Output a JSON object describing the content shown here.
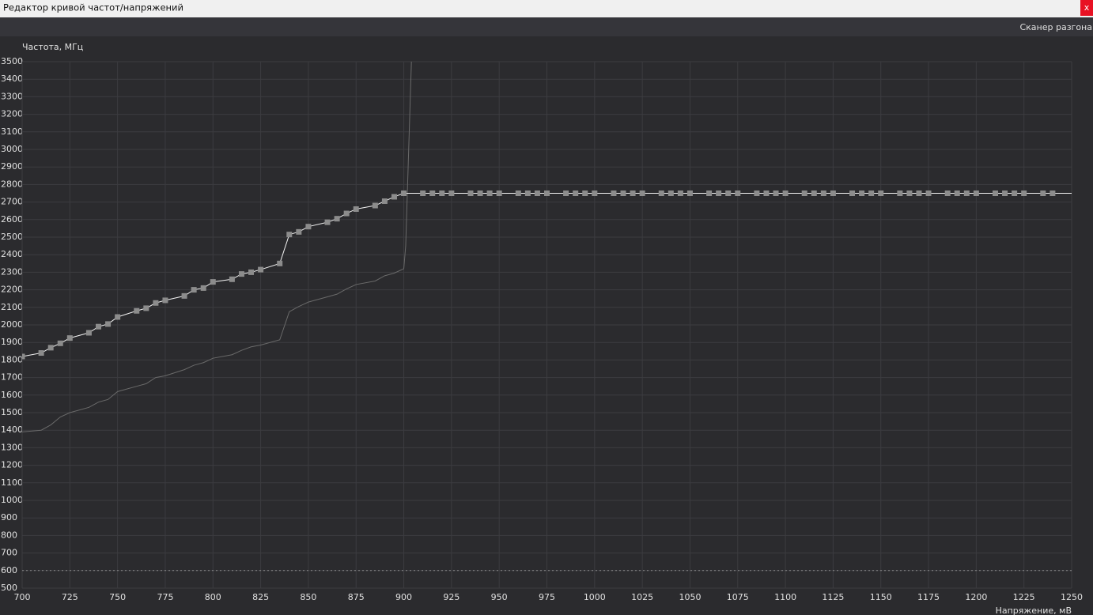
{
  "window": {
    "title": "Редактор кривой частот/напряжений",
    "close": "x",
    "toolbar_button": "Сканер разгона"
  },
  "chart_data": {
    "type": "line",
    "y_axis_label": "Частота, МГц",
    "x_axis_label": "Напряжение, мВ",
    "xlim": [
      700,
      1250
    ],
    "ylim": [
      500,
      3500
    ],
    "xticks": [
      700,
      725,
      750,
      775,
      800,
      825,
      850,
      875,
      900,
      925,
      950,
      975,
      1000,
      1025,
      1050,
      1075,
      1100,
      1125,
      1150,
      1175,
      1200,
      1225,
      1250
    ],
    "yticks": [
      500,
      600,
      700,
      800,
      900,
      1000,
      1100,
      1200,
      1300,
      1400,
      1500,
      1600,
      1700,
      1800,
      1900,
      2000,
      2100,
      2200,
      2300,
      2400,
      2500,
      2600,
      2700,
      2800,
      2900,
      3000,
      3100,
      3200,
      3300,
      3400,
      3500
    ],
    "grid": true,
    "reference_line": 600,
    "series": [
      {
        "color": "#6a6a6a",
        "markers": false,
        "x": [
          700,
          710,
          715,
          720,
          725,
          735,
          740,
          745,
          750,
          760,
          765,
          770,
          775,
          785,
          790,
          795,
          800,
          810,
          815,
          820,
          825,
          835,
          840,
          845,
          850,
          860,
          865,
          870,
          875,
          885,
          890,
          895,
          900,
          901,
          902,
          903,
          904
        ],
        "values": [
          1390,
          1400,
          1430,
          1475,
          1500,
          1530,
          1560,
          1575,
          1620,
          1650,
          1665,
          1700,
          1710,
          1745,
          1770,
          1785,
          1810,
          1830,
          1855,
          1875,
          1885,
          1915,
          2075,
          2105,
          2130,
          2160,
          2175,
          2205,
          2230,
          2250,
          2280,
          2295,
          2320,
          2450,
          2800,
          3150,
          3500
        ]
      },
      {
        "color": "#f2f2f2",
        "markers": true,
        "marker_color": "#8c8c8c",
        "x": [
          700,
          710,
          715,
          720,
          725,
          735,
          740,
          745,
          750,
          760,
          765,
          770,
          775,
          785,
          790,
          795,
          800,
          810,
          815,
          820,
          825,
          835,
          840,
          845,
          850,
          860,
          865,
          870,
          875,
          885,
          890,
          895,
          900,
          910,
          915,
          920,
          925,
          935,
          940,
          945,
          950,
          960,
          965,
          970,
          975,
          985,
          990,
          995,
          1000,
          1010,
          1015,
          1020,
          1025,
          1035,
          1040,
          1045,
          1050,
          1060,
          1065,
          1070,
          1075,
          1085,
          1090,
          1095,
          1100,
          1110,
          1115,
          1120,
          1125,
          1135,
          1140,
          1145,
          1150,
          1160,
          1165,
          1170,
          1175,
          1185,
          1190,
          1195,
          1200,
          1210,
          1215,
          1220,
          1225,
          1235,
          1240
        ],
        "values": [
          1820,
          1840,
          1870,
          1895,
          1925,
          1955,
          1990,
          2005,
          2045,
          2080,
          2095,
          2125,
          2140,
          2165,
          2200,
          2210,
          2245,
          2260,
          2290,
          2300,
          2315,
          2350,
          2515,
          2530,
          2560,
          2585,
          2605,
          2635,
          2660,
          2680,
          2705,
          2730,
          2750,
          2750,
          2750,
          2750,
          2750,
          2750,
          2750,
          2750,
          2750,
          2750,
          2750,
          2750,
          2750,
          2750,
          2750,
          2750,
          2750,
          2750,
          2750,
          2750,
          2750,
          2750,
          2750,
          2750,
          2750,
          2750,
          2750,
          2750,
          2750,
          2750,
          2750,
          2750,
          2750,
          2750,
          2750,
          2750,
          2750,
          2750,
          2750,
          2750,
          2750,
          2750,
          2750,
          2750,
          2750,
          2750,
          2750,
          2750,
          2750,
          2750,
          2750,
          2750,
          2750,
          2750,
          2750
        ]
      }
    ]
  }
}
